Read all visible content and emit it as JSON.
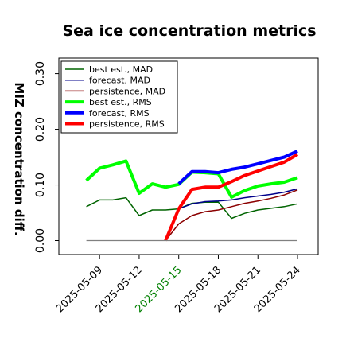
{
  "chart_data": {
    "type": "line",
    "title": "Sea ice concentration metrics",
    "ylabel": "MIZ concentration diff.",
    "xlabel": "",
    "ylim": [
      -0.025,
      0.328
    ],
    "yticks": [
      0.0,
      0.1,
      0.2,
      0.3
    ],
    "ytick_labels": [
      "0.00",
      "0.10",
      "0.20",
      "0.30"
    ],
    "xlim": [
      "2025-05-07",
      "2025-05-24"
    ],
    "xticks": [
      "2025-05-09",
      "2025-05-12",
      "2025-05-15",
      "2025-05-18",
      "2025-05-21",
      "2025-05-24"
    ],
    "xtick_colors": [
      "#000000",
      "#000000",
      "#008000",
      "#000000",
      "#000000",
      "#000000"
    ],
    "x": [
      "2025-05-08",
      "2025-05-09",
      "2025-05-10",
      "2025-05-11",
      "2025-05-12",
      "2025-05-13",
      "2025-05-14",
      "2025-05-15",
      "2025-05-16",
      "2025-05-17",
      "2025-05-18",
      "2025-05-19",
      "2025-05-20",
      "2025-05-21",
      "2025-05-22",
      "2025-05-23",
      "2025-05-24"
    ],
    "grid": false,
    "legend_position": "top-left",
    "series": [
      {
        "name": "best est., MAD",
        "color": "#006400",
        "width": 1.5,
        "values": [
          0.061,
          0.073,
          0.073,
          0.077,
          0.045,
          0.055,
          0.055,
          0.057,
          0.067,
          0.069,
          0.069,
          0.04,
          0.049,
          0.055,
          0.058,
          0.061,
          0.066
        ]
      },
      {
        "name": "forecast,  MAD",
        "color": "#00008b",
        "width": 1.5,
        "values": [
          null,
          null,
          null,
          null,
          null,
          null,
          null,
          0.057,
          0.066,
          0.07,
          0.071,
          0.073,
          0.077,
          0.08,
          0.083,
          0.087,
          0.093
        ]
      },
      {
        "name": "persistence, MAD",
        "color": "#8b0000",
        "width": 1.5,
        "values": [
          null,
          null,
          null,
          null,
          null,
          null,
          0.0,
          0.03,
          0.045,
          0.052,
          0.055,
          0.061,
          0.067,
          0.071,
          0.076,
          0.082,
          0.091
        ]
      },
      {
        "name": "best est., RMS",
        "color": "#00ff00",
        "width": 4,
        "values": [
          0.108,
          0.13,
          0.136,
          0.143,
          0.085,
          0.102,
          0.096,
          0.101,
          0.123,
          0.122,
          0.12,
          0.078,
          0.09,
          0.098,
          0.102,
          0.105,
          0.113
        ]
      },
      {
        "name": "forecast,  RMS",
        "color": "#0000ff",
        "width": 4,
        "values": [
          null,
          null,
          null,
          null,
          null,
          null,
          null,
          0.102,
          0.124,
          0.124,
          0.122,
          0.128,
          0.132,
          0.138,
          0.144,
          0.15,
          0.161
        ]
      },
      {
        "name": "persistence, RMS",
        "color": "#ff0000",
        "width": 4,
        "values": [
          null,
          null,
          null,
          null,
          null,
          null,
          0.0,
          0.057,
          0.092,
          0.096,
          0.096,
          0.106,
          0.117,
          0.125,
          0.133,
          0.141,
          0.155
        ]
      },
      {
        "name": "",
        "color": "#808080",
        "width": 1.2,
        "values": [
          0.0,
          0.0,
          0.0,
          0.0,
          0.0,
          0.0,
          0.0,
          0.0,
          0.0,
          0.0,
          0.0,
          0.0,
          0.0,
          0.0,
          0.0,
          0.0,
          0.0
        ]
      }
    ]
  }
}
